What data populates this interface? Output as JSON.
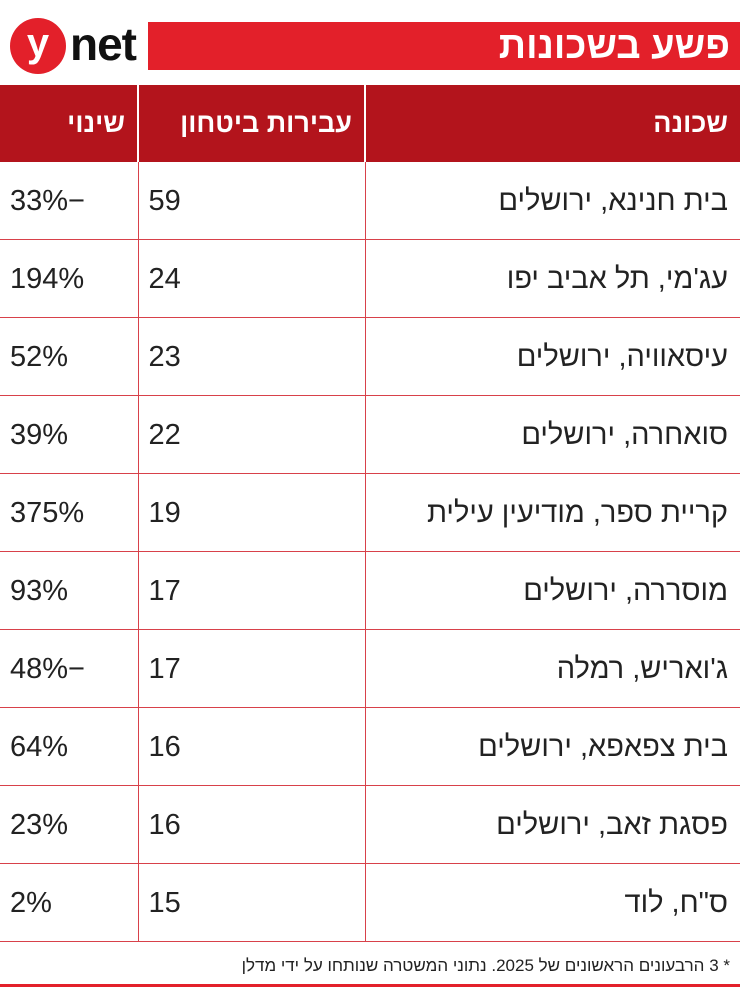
{
  "logo": {
    "mark": "y",
    "text": "net"
  },
  "header": {
    "title": "פשע בשכונות"
  },
  "table": {
    "columns": [
      "שכונה",
      "עבירות ביטחון",
      "שינוי"
    ],
    "rows": [
      [
        "בית חנינא, ירושלים",
        59,
        "−33%"
      ],
      [
        "עג'מי, תל אביב יפו",
        24,
        "194%"
      ],
      [
        "עיסאוויה, ירושלים",
        23,
        "52%"
      ],
      [
        "סואחרה, ירושלים",
        22,
        "39%"
      ],
      [
        "קריית ספר, מודיעין עילית",
        19,
        "375%"
      ],
      [
        "מוסררה, ירושלים",
        17,
        "93%"
      ],
      [
        "ג'ואריש, רמלה",
        17,
        "−48%"
      ],
      [
        "בית צפאפא, ירושלים",
        16,
        "64%"
      ],
      [
        "פסגת זאב, ירושלים",
        16,
        "23%"
      ],
      [
        "ס\"ח, לוד",
        15,
        "2%"
      ]
    ]
  },
  "footnote": "* 3 הרבעונים הראשונים של 2025. נתוני המשטרה שנותחו על ידי מדלן"
}
